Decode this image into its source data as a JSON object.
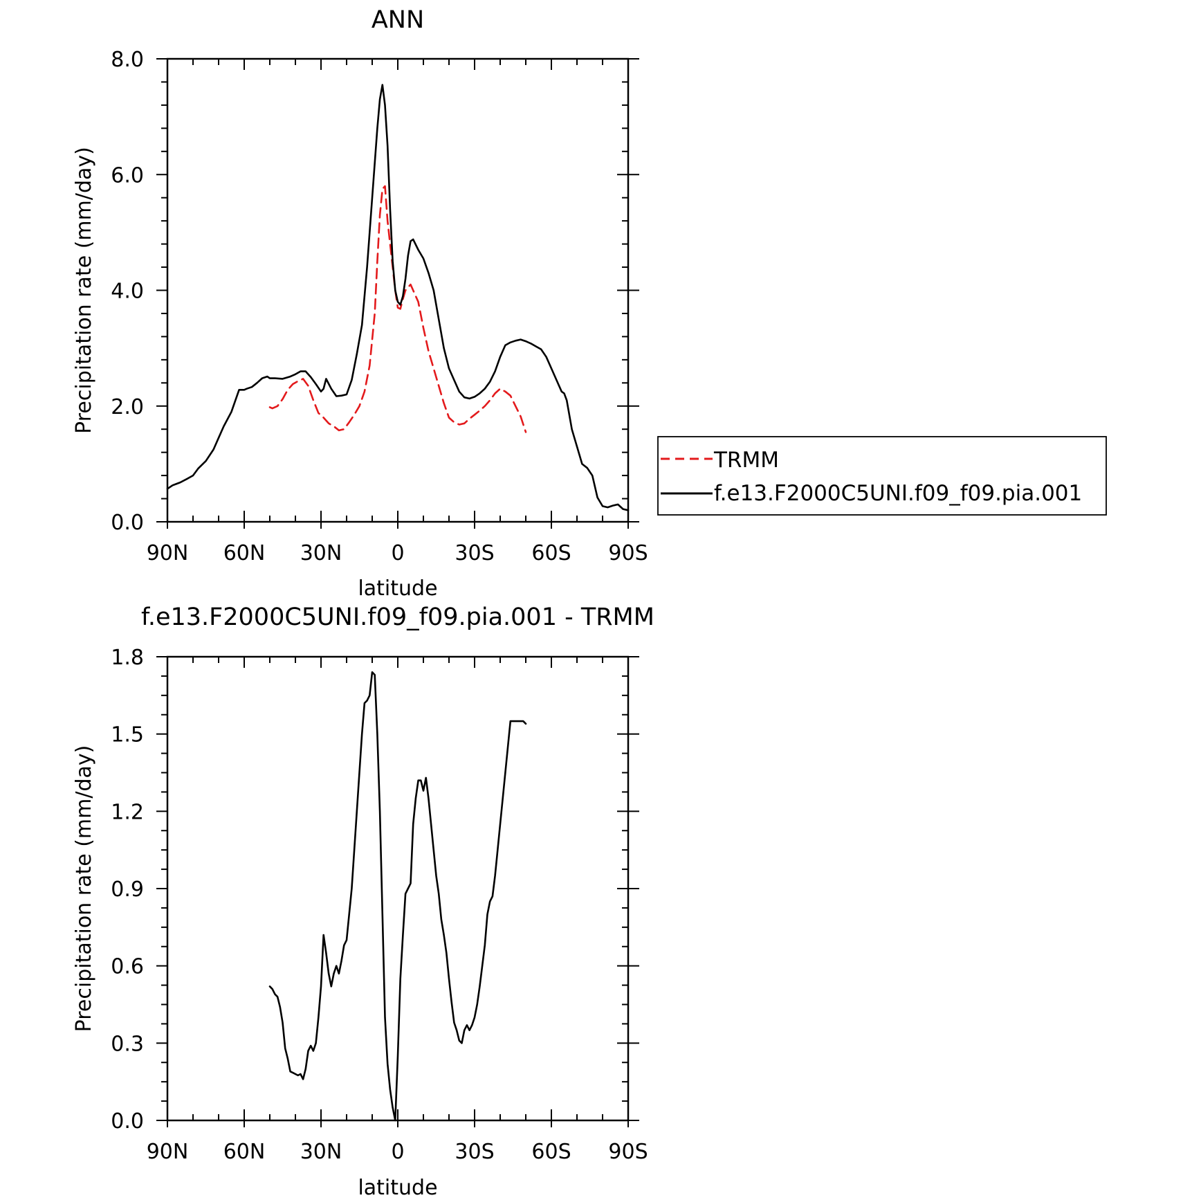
{
  "chart_data": [
    {
      "type": "line",
      "title": "ANN",
      "xlabel": "latitude",
      "ylabel": "Precipitation rate (mm/day)",
      "xlim": [
        90,
        -90
      ],
      "ylim": [
        0,
        8
      ],
      "x_ticks": [
        {
          "value": 90,
          "label": "90N"
        },
        {
          "value": 60,
          "label": "60N"
        },
        {
          "value": 30,
          "label": "30N"
        },
        {
          "value": 0,
          "label": "0"
        },
        {
          "value": -30,
          "label": "30S"
        },
        {
          "value": -60,
          "label": "60S"
        },
        {
          "value": -90,
          "label": "90S"
        }
      ],
      "y_ticks": [
        {
          "value": 0,
          "label": "0.0"
        },
        {
          "value": 2,
          "label": "2.0"
        },
        {
          "value": 4,
          "label": "4.0"
        },
        {
          "value": 6,
          "label": "6.0"
        },
        {
          "value": 8,
          "label": "8.0"
        }
      ],
      "legend": {
        "placement": "right",
        "order": [
          "TRMM",
          "f.e13.F2000C5UNI.f09_f09.pia.001"
        ]
      },
      "series": [
        {
          "name": "f.e13.F2000C5UNI.f09_f09.pia.001",
          "color": "#000000",
          "dash": "solid",
          "x": [
            90,
            88,
            85,
            82,
            80,
            78,
            75,
            72,
            70,
            68,
            65,
            62,
            60,
            59,
            57,
            55,
            53,
            51,
            50,
            48,
            45,
            42,
            40,
            38,
            36,
            34,
            32,
            30,
            29,
            28,
            26,
            24,
            22,
            20,
            18,
            16,
            14,
            12,
            10,
            8,
            7,
            6,
            5,
            4,
            3,
            2,
            1,
            0,
            -1,
            -2,
            -3,
            -4,
            -5,
            -6,
            -8,
            -10,
            -12,
            -14,
            -16,
            -18,
            -20,
            -22,
            -24,
            -26,
            -28,
            -30,
            -32,
            -34,
            -36,
            -38,
            -40,
            -42,
            -44,
            -46,
            -48,
            -50,
            -52,
            -54,
            -56,
            -58,
            -60,
            -62,
            -64,
            -65,
            -66,
            -68,
            -70,
            -72,
            -74,
            -76,
            -78,
            -80,
            -82,
            -84,
            -86,
            -88,
            -90
          ],
          "values": [
            0.57,
            0.63,
            0.68,
            0.75,
            0.8,
            0.92,
            1.05,
            1.25,
            1.45,
            1.65,
            1.9,
            2.28,
            2.28,
            2.3,
            2.33,
            2.4,
            2.48,
            2.51,
            2.48,
            2.48,
            2.47,
            2.51,
            2.55,
            2.6,
            2.6,
            2.5,
            2.38,
            2.25,
            2.3,
            2.47,
            2.3,
            2.17,
            2.18,
            2.2,
            2.45,
            2.9,
            3.4,
            4.4,
            5.6,
            6.8,
            7.3,
            7.55,
            7.2,
            6.5,
            5.4,
            4.5,
            4.0,
            3.8,
            3.75,
            3.9,
            4.2,
            4.6,
            4.85,
            4.88,
            4.7,
            4.55,
            4.3,
            4.0,
            3.5,
            3.0,
            2.65,
            2.45,
            2.25,
            2.15,
            2.13,
            2.16,
            2.22,
            2.3,
            2.42,
            2.6,
            2.85,
            3.05,
            3.1,
            3.13,
            3.15,
            3.12,
            3.08,
            3.03,
            2.98,
            2.85,
            2.65,
            2.45,
            2.25,
            2.22,
            2.1,
            1.6,
            1.3,
            1.0,
            0.93,
            0.8,
            0.42,
            0.27,
            0.25,
            0.28,
            0.3,
            0.22,
            0.2
          ]
        },
        {
          "name": "TRMM",
          "color": "#e31a1c",
          "dash": "dashed",
          "x": [
            50,
            49,
            47,
            45,
            43,
            41,
            39,
            37,
            35,
            33,
            31,
            29,
            27,
            25,
            23,
            21,
            19,
            17,
            15,
            13,
            11,
            9,
            8,
            7,
            6,
            5,
            4,
            3,
            2,
            1,
            0,
            -1,
            -2,
            -3,
            -4,
            -5,
            -6,
            -8,
            -10,
            -12,
            -14,
            -16,
            -18,
            -20,
            -22,
            -24,
            -26,
            -28,
            -30,
            -32,
            -34,
            -36,
            -38,
            -40,
            -42,
            -44,
            -46,
            -48,
            -50
          ],
          "values": [
            1.98,
            1.96,
            2.0,
            2.12,
            2.28,
            2.38,
            2.43,
            2.47,
            2.35,
            2.1,
            1.88,
            1.8,
            1.7,
            1.65,
            1.58,
            1.6,
            1.72,
            1.85,
            2.0,
            2.25,
            2.7,
            3.6,
            4.5,
            5.3,
            5.75,
            5.8,
            5.2,
            4.8,
            4.4,
            4.0,
            3.7,
            3.68,
            3.85,
            4.0,
            4.05,
            4.1,
            4.0,
            3.8,
            3.35,
            2.95,
            2.65,
            2.35,
            2.05,
            1.8,
            1.72,
            1.68,
            1.7,
            1.78,
            1.85,
            1.92,
            2.0,
            2.1,
            2.22,
            2.3,
            2.25,
            2.18,
            2.0,
            1.82,
            1.55
          ]
        }
      ]
    },
    {
      "type": "line",
      "title": "f.e13.F2000C5UNI.f09_f09.pia.001 - TRMM",
      "xlabel": "latitude",
      "ylabel": "Precipitation rate (mm/day)",
      "xlim": [
        90,
        -90
      ],
      "ylim": [
        0,
        1.8
      ],
      "x_ticks": [
        {
          "value": 90,
          "label": "90N"
        },
        {
          "value": 60,
          "label": "60N"
        },
        {
          "value": 30,
          "label": "30N"
        },
        {
          "value": 0,
          "label": "0"
        },
        {
          "value": -30,
          "label": "30S"
        },
        {
          "value": -60,
          "label": "60S"
        },
        {
          "value": -90,
          "label": "90S"
        }
      ],
      "y_ticks": [
        {
          "value": 0,
          "label": "0.0"
        },
        {
          "value": 0.3,
          "label": "0.3"
        },
        {
          "value": 0.6,
          "label": "0.6"
        },
        {
          "value": 0.9,
          "label": "0.9"
        },
        {
          "value": 1.2,
          "label": "1.2"
        },
        {
          "value": 1.5,
          "label": "1.5"
        },
        {
          "value": 1.8,
          "label": "1.8"
        }
      ],
      "series": [
        {
          "color": "#000000",
          "dash": "solid",
          "x": [
            50,
            49,
            48,
            47,
            46,
            45,
            44,
            43,
            42,
            41,
            40,
            39,
            38,
            37,
            36,
            35,
            34,
            33,
            32,
            31,
            30,
            29,
            28,
            27,
            26,
            25,
            24,
            23,
            22,
            21,
            20,
            19,
            18,
            17,
            16,
            15,
            14,
            13,
            12,
            11,
            10,
            9,
            8,
            7,
            6,
            5,
            4,
            3,
            2,
            1,
            0,
            -1,
            -2,
            -3,
            -4,
            -5,
            -6,
            -7,
            -8,
            -9,
            -10,
            -11,
            -12,
            -13,
            -14,
            -15,
            -16,
            -17,
            -18,
            -19,
            -20,
            -21,
            -22,
            -23,
            -24,
            -25,
            -26,
            -27,
            -28,
            -29,
            -30,
            -31,
            -32,
            -33,
            -34,
            -35,
            -36,
            -37,
            -38,
            -39,
            -40,
            -41,
            -42,
            -43,
            -44,
            -45,
            -46,
            -47,
            -48,
            -49,
            -50
          ],
          "values": [
            0.52,
            0.51,
            0.49,
            0.48,
            0.44,
            0.38,
            0.28,
            0.24,
            0.19,
            0.185,
            0.18,
            0.175,
            0.18,
            0.16,
            0.2,
            0.27,
            0.29,
            0.27,
            0.3,
            0.4,
            0.52,
            0.72,
            0.65,
            0.57,
            0.52,
            0.57,
            0.6,
            0.57,
            0.62,
            0.68,
            0.7,
            0.8,
            0.9,
            1.05,
            1.2,
            1.35,
            1.5,
            1.62,
            1.63,
            1.65,
            1.74,
            1.73,
            1.5,
            1.2,
            0.8,
            0.4,
            0.22,
            0.12,
            0.05,
            0.0,
            0.25,
            0.55,
            0.72,
            0.88,
            0.9,
            0.92,
            1.15,
            1.25,
            1.32,
            1.32,
            1.28,
            1.33,
            1.25,
            1.15,
            1.05,
            0.95,
            0.88,
            0.78,
            0.72,
            0.65,
            0.55,
            0.46,
            0.38,
            0.35,
            0.31,
            0.3,
            0.35,
            0.37,
            0.35,
            0.37,
            0.4,
            0.45,
            0.52,
            0.6,
            0.68,
            0.8,
            0.85,
            0.87,
            0.95,
            1.05,
            1.15,
            1.25,
            1.35,
            1.45,
            1.55,
            1.55,
            1.55,
            1.55,
            1.55,
            1.55,
            1.54
          ]
        }
      ]
    }
  ]
}
